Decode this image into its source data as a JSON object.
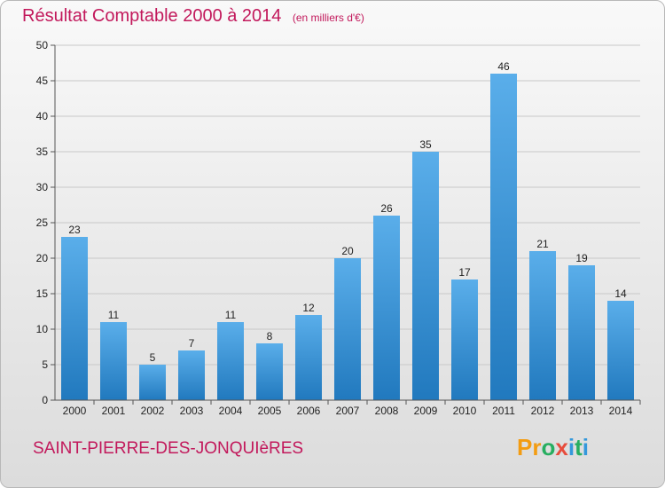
{
  "title": "Résultat Comptable 2000 à 2014",
  "subtitle": "(en milliers d'€)",
  "commune": "SAINT-PIERRE-DES-JONQUIèRES",
  "logo": {
    "text": "Proxiti",
    "colors": [
      "#f39c12",
      "#f39c12",
      "#27ae60",
      "#e74c3c",
      "#3498db",
      "#27ae60",
      "#3498db"
    ]
  },
  "colors": {
    "accent": "#c2185b",
    "bar_top": "#5aaeea",
    "bar_bottom": "#2179be",
    "axis": "#555555",
    "grid": "#c8c8c8"
  },
  "chart_data": {
    "type": "bar",
    "categories": [
      "2000",
      "2001",
      "2002",
      "2003",
      "2004",
      "2005",
      "2006",
      "2007",
      "2008",
      "2009",
      "2010",
      "2011",
      "2012",
      "2013",
      "2014"
    ],
    "values": [
      23,
      11,
      5,
      7,
      11,
      8,
      12,
      20,
      26,
      35,
      17,
      46,
      21,
      19,
      14
    ],
    "title": "Résultat Comptable 2000 à 2014",
    "xlabel": "",
    "ylabel": "",
    "ylim": [
      0,
      50
    ],
    "yticks": [
      0,
      5,
      10,
      15,
      20,
      25,
      30,
      35,
      40,
      45,
      50
    ],
    "grid": true,
    "data_labels": true
  }
}
